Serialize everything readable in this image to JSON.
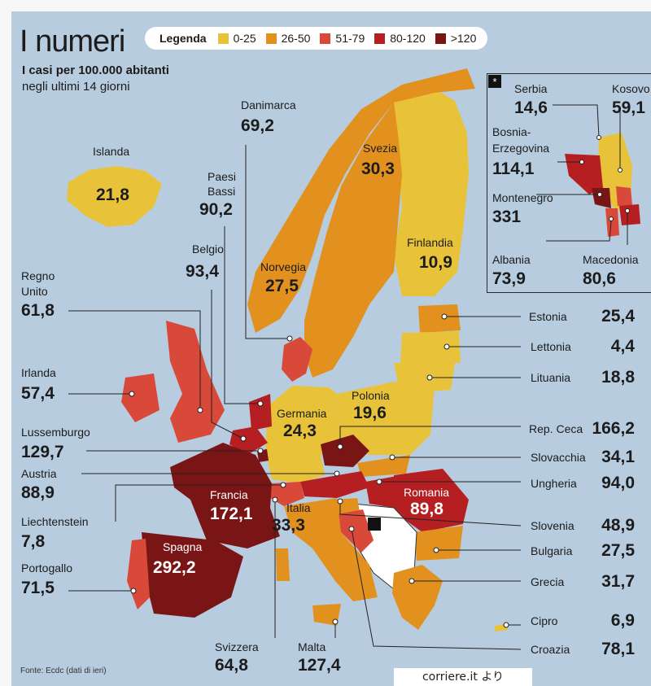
{
  "title": "I numeri",
  "subtitle_line1": "I casi per 100.000 abitanti",
  "subtitle_line2": "negli ultimi 14 giorni",
  "legend": {
    "title": "Legenda",
    "items": [
      {
        "label": "0-25",
        "color": "#e8c33a"
      },
      {
        "label": "26-50",
        "color": "#e2901e"
      },
      {
        "label": "51-79",
        "color": "#d8493a"
      },
      {
        "label": "80-120",
        "color": "#b51f21"
      },
      {
        "label": ">120",
        "color": "#7a1515"
      }
    ]
  },
  "inset_marker": "*",
  "countries": {
    "islanda": {
      "name": "Islanda",
      "value": "21,8"
    },
    "danimarca": {
      "name": "Danimarca",
      "value": "69,2"
    },
    "svezia": {
      "name": "Svezia",
      "value": "30,3"
    },
    "paesi_bassi": {
      "name": "Paesi\nBassi",
      "value": "90,2"
    },
    "norvegia": {
      "name": "Norvegia",
      "value": "27,5"
    },
    "finlandia": {
      "name": "Finlandia",
      "value": "10,9"
    },
    "belgio": {
      "name": "Belgio",
      "value": "93,4"
    },
    "regno_unito": {
      "name": "Regno\nUnito",
      "value": "61,8"
    },
    "irlanda": {
      "name": "Irlanda",
      "value": "57,4"
    },
    "lussemburgo": {
      "name": "Lussemburgo",
      "value": "129,7"
    },
    "austria": {
      "name": "Austria",
      "value": "88,9"
    },
    "liechtenstein": {
      "name": "Liechtenstein",
      "value": "7,8"
    },
    "portogallo": {
      "name": "Portogallo",
      "value": "71,5"
    },
    "germania": {
      "name": "Germania",
      "value": "24,3"
    },
    "polonia": {
      "name": "Polonia",
      "value": "19,6"
    },
    "francia": {
      "name": "Francia",
      "value": "172,1"
    },
    "italia": {
      "name": "Italia",
      "value": "33,3"
    },
    "spagna": {
      "name": "Spagna",
      "value": "292,2"
    },
    "romania": {
      "name": "Romania",
      "value": "89,8"
    },
    "svizzera": {
      "name": "Svizzera",
      "value": "64,8"
    },
    "malta": {
      "name": "Malta",
      "value": "127,4"
    },
    "estonia": {
      "name": "Estonia",
      "value": "25,4"
    },
    "lettonia": {
      "name": "Lettonia",
      "value": "4,4"
    },
    "lituania": {
      "name": "Lituania",
      "value": "18,8"
    },
    "rep_ceca": {
      "name": "Rep. Ceca",
      "value": "166,2"
    },
    "slovacchia": {
      "name": "Slovacchia",
      "value": "34,1"
    },
    "ungheria": {
      "name": "Ungheria",
      "value": "94,0"
    },
    "slovenia": {
      "name": "Slovenia",
      "value": "48,9"
    },
    "bulgaria": {
      "name": "Bulgaria",
      "value": "27,5"
    },
    "grecia": {
      "name": "Grecia",
      "value": "31,7"
    },
    "cipro": {
      "name": "Cipro",
      "value": "6,9"
    },
    "croazia": {
      "name": "Croazia",
      "value": "78,1"
    },
    "serbia": {
      "name": "Serbia",
      "value": "14,6"
    },
    "kosovo": {
      "name": "Kosovo",
      "value": "59,1"
    },
    "bosnia": {
      "name": "Bosnia-\nErzegovina",
      "value": "114,1"
    },
    "montenegro": {
      "name": "Montenegro",
      "value": "331"
    },
    "albania": {
      "name": "Albania",
      "value": "73,9"
    },
    "macedonia": {
      "name": "Macedonia",
      "value": "80,6"
    }
  },
  "source": "Fonte: Ecdc (dati di ieri)",
  "credit": "corriere.it より"
}
